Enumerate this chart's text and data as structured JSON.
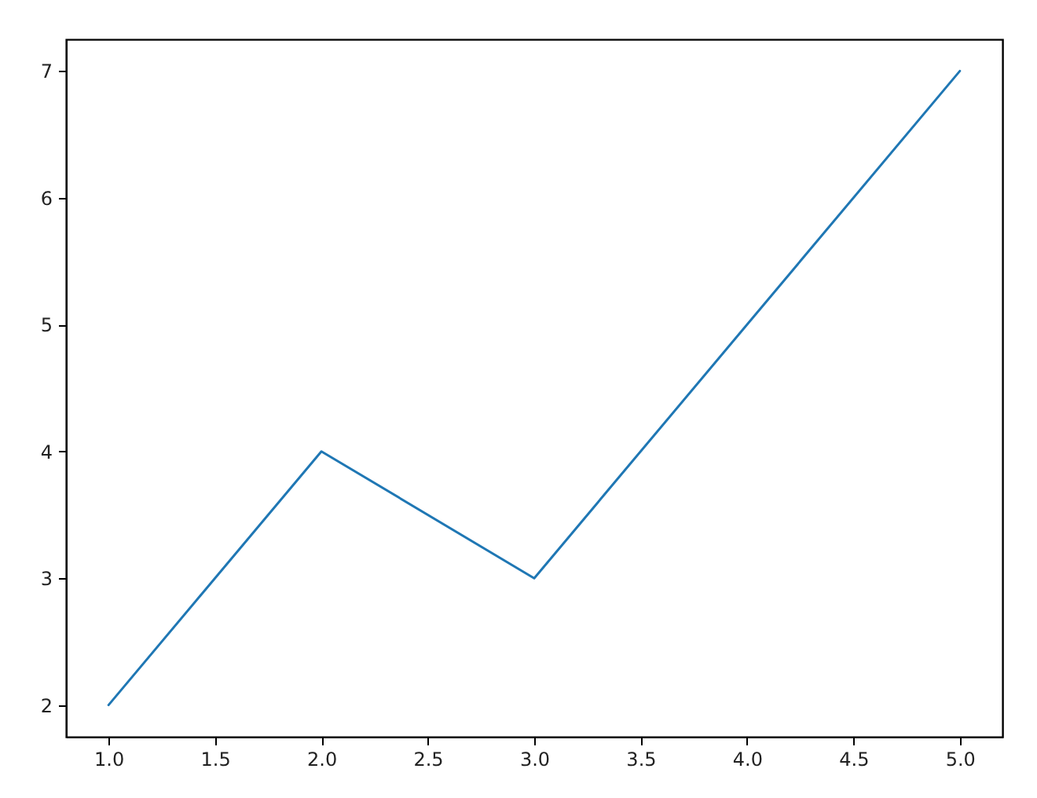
{
  "chart_data": {
    "type": "line",
    "x": [
      1,
      2,
      3,
      4,
      5
    ],
    "series": [
      {
        "color": "#1f77b4",
        "values": [
          2,
          4,
          3,
          5,
          7
        ]
      }
    ],
    "xlim": [
      0.8,
      5.2
    ],
    "xticks": [
      {
        "value": 1,
        "label": "1.0"
      },
      {
        "value": 1.5,
        "label": "1.5"
      },
      {
        "value": 2,
        "label": "2.0"
      },
      {
        "value": 2.5,
        "label": "2.5"
      },
      {
        "value": 3,
        "label": "3.0"
      },
      {
        "value": 3.5,
        "label": "3.5"
      },
      {
        "value": 4,
        "label": "4.0"
      },
      {
        "value": 4.5,
        "label": "4.5"
      },
      {
        "value": 5,
        "label": "5.0"
      }
    ],
    "ylim": [
      1.75,
      7.25
    ],
    "yticks": [
      2,
      3,
      4,
      5,
      6,
      7
    ],
    "grid": false,
    "marker": "none",
    "line_style": "solid"
  }
}
